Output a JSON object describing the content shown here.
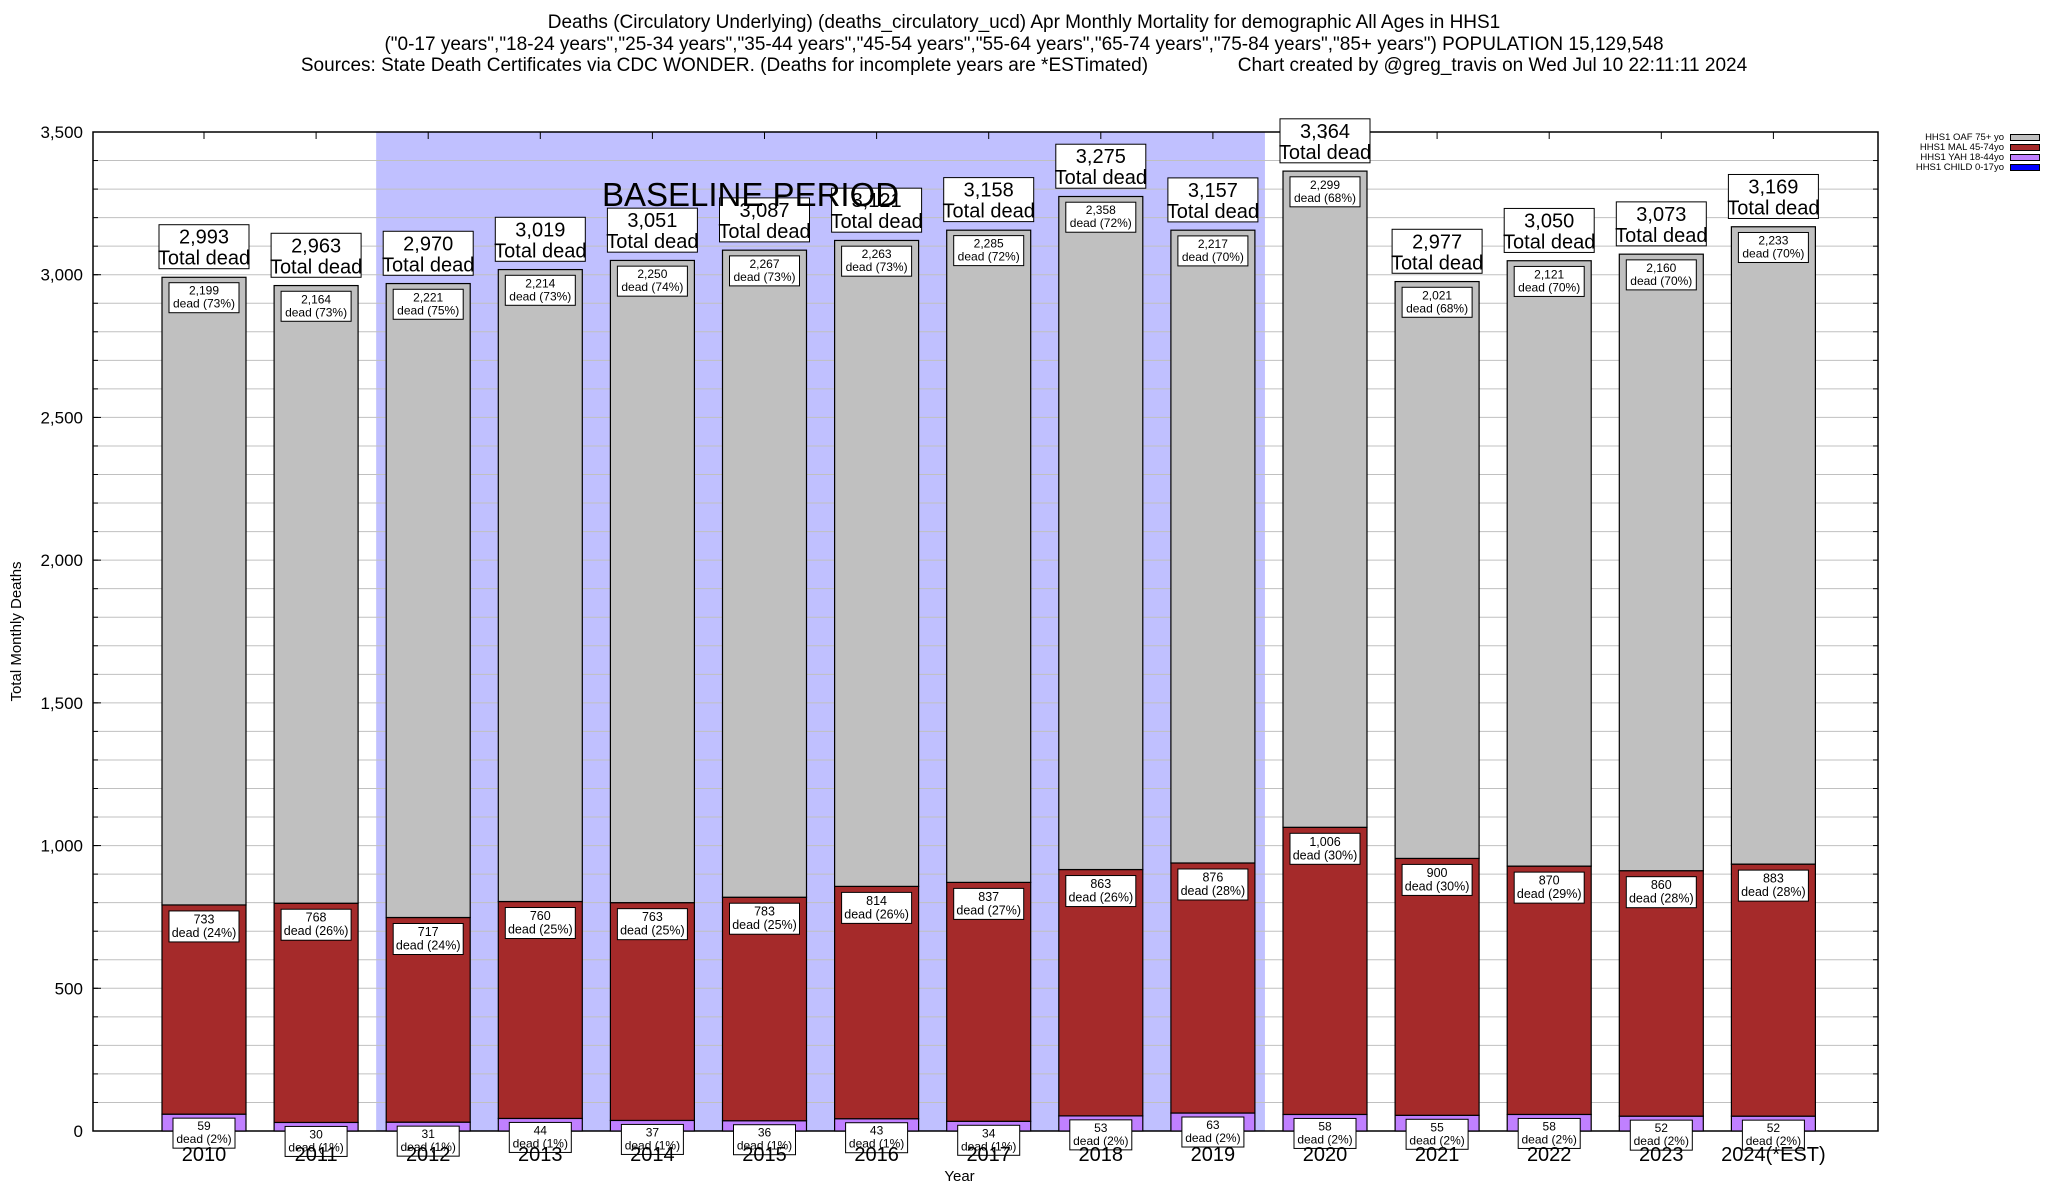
{
  "header": {
    "title_line1": "Deaths (Circulatory Underlying) (deaths_circulatory_ucd) Apr Monthly Mortality for demographic All Ages in HHS1",
    "title_line2": "(\"0-17 years\",\"18-24 years\",\"25-34 years\",\"35-44 years\",\"45-54 years\",\"55-64 years\",\"65-74 years\",\"75-84 years\",\"85+ years\") POPULATION 15,129,548",
    "title_line3": "Sources: State Death Certificates via CDC WONDER. (Deaths for incomplete years are *ESTimated)                 Chart created by @greg_travis on Wed Jul 10 22:11:11 2024"
  },
  "colors": {
    "oaf": "#c0c0c0",
    "mal": "#a52a2a",
    "yah": "#c080ff",
    "child": "#0000ff",
    "baseline": "#c0c0ff",
    "grid": "#c0c0c0"
  },
  "chart_data": {
    "type": "bar",
    "stacked": true,
    "title": "Deaths (Circulatory Underlying) (deaths_circulatory_ucd) Apr Monthly Mortality for demographic All Ages in HHS1",
    "xlabel": "Year",
    "ylabel": "Total Monthly Deaths",
    "ylim": [
      0,
      3500
    ],
    "yticks": [
      0,
      500,
      1000,
      1500,
      2000,
      2500,
      3000,
      3500
    ],
    "ytick_labels": [
      "0",
      "500",
      "1,000",
      "1,500",
      "2,000",
      "2,500",
      "3,000",
      "3,500"
    ],
    "minor_grid_step": 100,
    "grid": true,
    "legend_position": "top-right",
    "categories": [
      "2010",
      "2011",
      "2012",
      "2013",
      "2014",
      "2015",
      "2016",
      "2017",
      "2018",
      "2019",
      "2020",
      "2021",
      "2022",
      "2023",
      "2024(*EST)"
    ],
    "baseline_period": {
      "label": "BASELINE PERIOD",
      "from": "2012",
      "to": "2019"
    },
    "series": [
      {
        "name": "HHS1 CHILD 0-17yo",
        "key": "child",
        "values": [
          0,
          0,
          0,
          0,
          0,
          0,
          0,
          0,
          0,
          0,
          0,
          0,
          0,
          0,
          0
        ]
      },
      {
        "name": "HHS1 YAH 18-44yo",
        "key": "yah",
        "values": [
          59,
          30,
          31,
          44,
          37,
          36,
          43,
          34,
          53,
          63,
          58,
          55,
          58,
          52,
          52
        ],
        "labels": [
          "59\ndead (2%)",
          "30\ndead (1%)",
          "31\ndead (1%)",
          "44\ndead (1%)",
          "37\ndead (1%)",
          "36\ndead (1%)",
          "43\ndead (1%)",
          "34\ndead (1%)",
          "53\ndead (2%)",
          "63\ndead (2%)",
          "58\ndead (2%)",
          "55\ndead (2%)",
          "58\ndead (2%)",
          "52\ndead (2%)",
          "52\ndead (2%)"
        ]
      },
      {
        "name": "HHS1 MAL 45-74yo",
        "key": "mal",
        "values": [
          733,
          768,
          717,
          760,
          763,
          783,
          814,
          837,
          863,
          876,
          1006,
          900,
          870,
          860,
          883
        ],
        "labels": [
          "733\ndead (24%)",
          "768\ndead (26%)",
          "717\ndead (24%)",
          "760\ndead (25%)",
          "763\ndead (25%)",
          "783\ndead (25%)",
          "814\ndead (26%)",
          "837\ndead (27%)",
          "863\ndead (26%)",
          "876\ndead (28%)",
          "1,006\ndead (30%)",
          "900\ndead (30%)",
          "870\ndead (29%)",
          "860\ndead (28%)",
          "883\ndead (28%)"
        ]
      },
      {
        "name": "HHS1 OAF 75+ yo",
        "key": "oaf",
        "values": [
          2199,
          2164,
          2221,
          2214,
          2250,
          2267,
          2263,
          2285,
          2358,
          2217,
          2299,
          2021,
          2121,
          2160,
          2233
        ],
        "labels": [
          "2,199\ndead (73%)",
          "2,164\ndead (73%)",
          "2,221\ndead (75%)",
          "2,214\ndead (73%)",
          "2,250\ndead (74%)",
          "2,267\ndead (73%)",
          "2,263\ndead (73%)",
          "2,285\ndead (72%)",
          "2,358\ndead (72%)",
          "2,217\ndead (70%)",
          "2,299\ndead (68%)",
          "2,021\ndead (68%)",
          "2,121\ndead (70%)",
          "2,160\ndead (70%)",
          "2,233\ndead (70%)"
        ]
      }
    ],
    "totals": [
      2993,
      2963,
      2970,
      3019,
      3051,
      3087,
      3121,
      3158,
      3275,
      3157,
      3364,
      2977,
      3050,
      3073,
      3169
    ],
    "total_labels": [
      "2,993\nTotal dead",
      "2,963\nTotal dead",
      "2,970\nTotal dead",
      "3,019\nTotal dead",
      "3,051\nTotal dead",
      "3,087\nTotal dead",
      "3,121\nTotal dead",
      "3,158\nTotal dead",
      "3,275\nTotal dead",
      "3,157\nTotal dead",
      "3,364\nTotal dead",
      "2,977\nTotal dead",
      "3,050\nTotal dead",
      "3,073\nTotal dead",
      "3,169\nTotal dead"
    ]
  },
  "legend": [
    {
      "label": "HHS1 OAF 75+ yo",
      "key": "oaf"
    },
    {
      "label": "HHS1 MAL 45-74yo",
      "key": "mal"
    },
    {
      "label": "HHS1 YAH 18-44yo",
      "key": "yah"
    },
    {
      "label": "HHS1 CHILD 0-17yo",
      "key": "child"
    }
  ]
}
